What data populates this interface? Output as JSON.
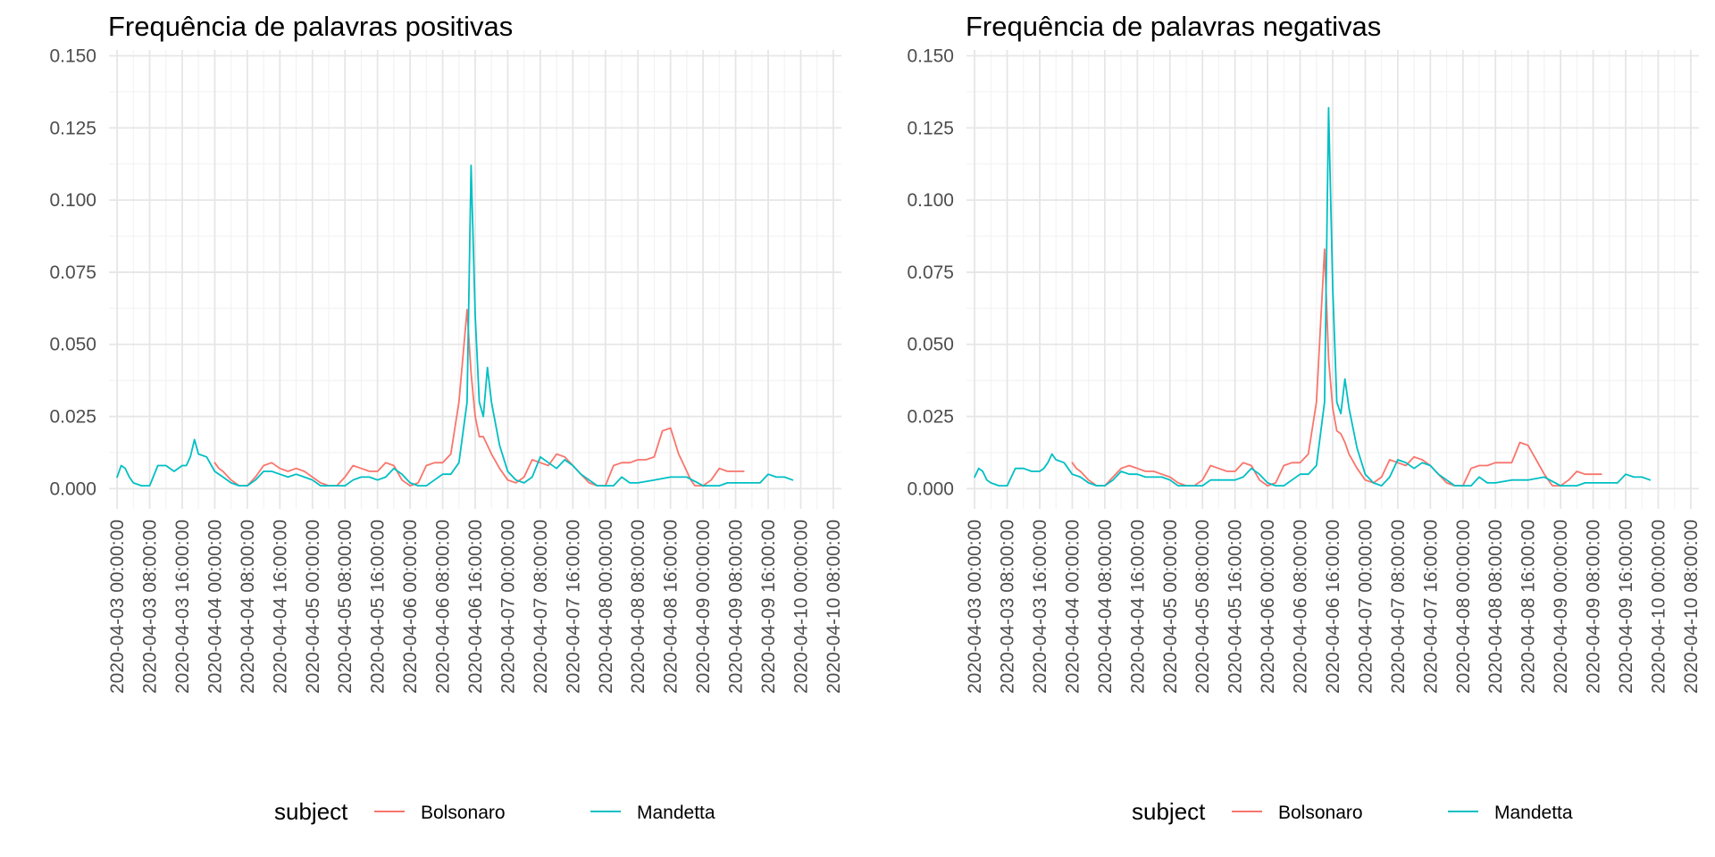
{
  "chart_data": [
    {
      "type": "line",
      "title": "Frequência de palavras positivas",
      "xlabel": "",
      "ylabel": "",
      "ylim": [
        -0.007,
        0.152
      ],
      "y_ticks": [
        0.0,
        0.025,
        0.05,
        0.075,
        0.1,
        0.125,
        0.15
      ],
      "y_tick_labels": [
        "0.000",
        "0.025",
        "0.050",
        "0.075",
        "0.100",
        "0.125",
        "0.150"
      ],
      "x_range": [
        "2020-04-02 22:00",
        "2020-04-10 10:00"
      ],
      "x_ticks": [
        "2020-04-03 00:00:00",
        "2020-04-03 08:00:00",
        "2020-04-03 16:00:00",
        "2020-04-04 00:00:00",
        "2020-04-04 08:00:00",
        "2020-04-04 16:00:00",
        "2020-04-05 00:00:00",
        "2020-04-05 08:00:00",
        "2020-04-05 16:00:00",
        "2020-04-06 00:00:00",
        "2020-04-06 08:00:00",
        "2020-04-06 16:00:00",
        "2020-04-07 00:00:00",
        "2020-04-07 08:00:00",
        "2020-04-07 16:00:00",
        "2020-04-08 00:00:00",
        "2020-04-08 08:00:00",
        "2020-04-08 16:00:00",
        "2020-04-09 00:00:00",
        "2020-04-09 08:00:00",
        "2020-04-09 16:00:00",
        "2020-04-10 00:00:00",
        "2020-04-10 08:00:00"
      ],
      "grid": true,
      "legend": {
        "title": "subject",
        "position": "bottom",
        "entries": [
          "Bolsonaro",
          "Mandetta"
        ]
      },
      "series": [
        {
          "name": "Bolsonaro",
          "color": "#F8766D",
          "x": [
            "2020-04-04 00:00",
            "2020-04-04 01:00",
            "2020-04-04 02:00",
            "2020-04-04 04:00",
            "2020-04-04 06:00",
            "2020-04-04 08:00",
            "2020-04-04 10:00",
            "2020-04-04 12:00",
            "2020-04-04 14:00",
            "2020-04-04 16:00",
            "2020-04-04 18:00",
            "2020-04-04 20:00",
            "2020-04-04 22:00",
            "2020-04-05 00:00",
            "2020-04-05 02:00",
            "2020-04-05 04:00",
            "2020-04-05 06:00",
            "2020-04-05 08:00",
            "2020-04-05 10:00",
            "2020-04-05 12:00",
            "2020-04-05 14:00",
            "2020-04-05 16:00",
            "2020-04-05 18:00",
            "2020-04-05 20:00",
            "2020-04-05 22:00",
            "2020-04-06 00:00",
            "2020-04-06 02:00",
            "2020-04-06 04:00",
            "2020-04-06 06:00",
            "2020-04-06 08:00",
            "2020-04-06 10:00",
            "2020-04-06 12:00",
            "2020-04-06 14:00",
            "2020-04-06 15:00",
            "2020-04-06 16:00",
            "2020-04-06 17:00",
            "2020-04-06 18:00",
            "2020-04-06 19:00",
            "2020-04-06 20:00",
            "2020-04-06 22:00",
            "2020-04-07 00:00",
            "2020-04-07 02:00",
            "2020-04-07 04:00",
            "2020-04-07 06:00",
            "2020-04-07 08:00",
            "2020-04-07 10:00",
            "2020-04-07 12:00",
            "2020-04-07 14:00",
            "2020-04-07 16:00",
            "2020-04-07 18:00",
            "2020-04-07 20:00",
            "2020-04-07 22:00",
            "2020-04-08 00:00",
            "2020-04-08 02:00",
            "2020-04-08 04:00",
            "2020-04-08 06:00",
            "2020-04-08 08:00",
            "2020-04-08 10:00",
            "2020-04-08 12:00",
            "2020-04-08 14:00",
            "2020-04-08 16:00",
            "2020-04-08 18:00",
            "2020-04-08 20:00",
            "2020-04-08 21:00",
            "2020-04-08 22:00",
            "2020-04-09 00:00",
            "2020-04-09 02:00",
            "2020-04-09 04:00",
            "2020-04-09 06:00",
            "2020-04-09 08:00",
            "2020-04-09 10:00"
          ],
          "values": [
            0.009,
            0.007,
            0.006,
            0.003,
            0.001,
            0.001,
            0.004,
            0.008,
            0.009,
            0.007,
            0.006,
            0.007,
            0.006,
            0.004,
            0.002,
            0.001,
            0.001,
            0.004,
            0.008,
            0.007,
            0.006,
            0.006,
            0.009,
            0.008,
            0.003,
            0.001,
            0.002,
            0.008,
            0.009,
            0.009,
            0.012,
            0.03,
            0.062,
            0.04,
            0.025,
            0.018,
            0.018,
            0.015,
            0.012,
            0.007,
            0.003,
            0.002,
            0.004,
            0.01,
            0.009,
            0.008,
            0.012,
            0.011,
            0.008,
            0.005,
            0.002,
            0.001,
            0.001,
            0.008,
            0.009,
            0.009,
            0.01,
            0.01,
            0.011,
            0.02,
            0.021,
            0.012,
            0.006,
            0.003,
            0.001,
            0.001,
            0.003,
            0.007,
            0.006,
            0.006,
            0.006
          ]
        },
        {
          "name": "Mandetta",
          "color": "#00BFC4",
          "x": [
            "2020-04-03 00:00",
            "2020-04-03 01:00",
            "2020-04-03 02:00",
            "2020-04-03 03:00",
            "2020-04-03 04:00",
            "2020-04-03 06:00",
            "2020-04-03 08:00",
            "2020-04-03 10:00",
            "2020-04-03 12:00",
            "2020-04-03 14:00",
            "2020-04-03 16:00",
            "2020-04-03 17:00",
            "2020-04-03 18:00",
            "2020-04-03 19:00",
            "2020-04-03 20:00",
            "2020-04-03 22:00",
            "2020-04-04 00:00",
            "2020-04-04 02:00",
            "2020-04-04 04:00",
            "2020-04-04 06:00",
            "2020-04-04 08:00",
            "2020-04-04 10:00",
            "2020-04-04 12:00",
            "2020-04-04 14:00",
            "2020-04-04 16:00",
            "2020-04-04 18:00",
            "2020-04-04 20:00",
            "2020-04-04 22:00",
            "2020-04-05 00:00",
            "2020-04-05 02:00",
            "2020-04-05 04:00",
            "2020-04-05 06:00",
            "2020-04-05 08:00",
            "2020-04-05 10:00",
            "2020-04-05 12:00",
            "2020-04-05 14:00",
            "2020-04-05 16:00",
            "2020-04-05 18:00",
            "2020-04-05 20:00",
            "2020-04-05 22:00",
            "2020-04-06 00:00",
            "2020-04-06 02:00",
            "2020-04-06 04:00",
            "2020-04-06 06:00",
            "2020-04-06 08:00",
            "2020-04-06 10:00",
            "2020-04-06 12:00",
            "2020-04-06 14:00",
            "2020-04-06 15:00",
            "2020-04-06 16:00",
            "2020-04-06 17:00",
            "2020-04-06 18:00",
            "2020-04-06 19:00",
            "2020-04-06 20:00",
            "2020-04-06 22:00",
            "2020-04-07 00:00",
            "2020-04-07 02:00",
            "2020-04-07 04:00",
            "2020-04-07 06:00",
            "2020-04-07 08:00",
            "2020-04-07 10:00",
            "2020-04-07 12:00",
            "2020-04-07 14:00",
            "2020-04-07 16:00",
            "2020-04-07 18:00",
            "2020-04-07 20:00",
            "2020-04-07 22:00",
            "2020-04-08 00:00",
            "2020-04-08 02:00",
            "2020-04-08 04:00",
            "2020-04-08 06:00",
            "2020-04-08 08:00",
            "2020-04-08 12:00",
            "2020-04-08 16:00",
            "2020-04-08 20:00",
            "2020-04-09 00:00",
            "2020-04-09 02:00",
            "2020-04-09 04:00",
            "2020-04-09 06:00",
            "2020-04-09 08:00",
            "2020-04-09 10:00",
            "2020-04-09 12:00",
            "2020-04-09 14:00",
            "2020-04-09 16:00",
            "2020-04-09 18:00",
            "2020-04-09 20:00",
            "2020-04-09 22:00"
          ],
          "values": [
            0.004,
            0.008,
            0.007,
            0.004,
            0.002,
            0.001,
            0.001,
            0.008,
            0.008,
            0.006,
            0.008,
            0.008,
            0.011,
            0.017,
            0.012,
            0.011,
            0.006,
            0.004,
            0.002,
            0.001,
            0.001,
            0.003,
            0.006,
            0.006,
            0.005,
            0.004,
            0.005,
            0.004,
            0.003,
            0.001,
            0.001,
            0.001,
            0.001,
            0.003,
            0.004,
            0.004,
            0.003,
            0.004,
            0.007,
            0.005,
            0.002,
            0.001,
            0.001,
            0.003,
            0.005,
            0.005,
            0.009,
            0.03,
            0.112,
            0.06,
            0.03,
            0.025,
            0.042,
            0.03,
            0.015,
            0.006,
            0.003,
            0.002,
            0.004,
            0.011,
            0.009,
            0.007,
            0.01,
            0.008,
            0.005,
            0.003,
            0.001,
            0.001,
            0.001,
            0.004,
            0.002,
            0.002,
            0.003,
            0.004,
            0.004,
            0.001,
            0.001,
            0.001,
            0.002,
            0.002,
            0.002,
            0.002,
            0.002,
            0.005,
            0.004,
            0.004,
            0.003
          ]
        }
      ]
    },
    {
      "type": "line",
      "title": "Frequência de palavras negativas",
      "xlabel": "",
      "ylabel": "",
      "ylim": [
        -0.007,
        0.152
      ],
      "y_ticks": [
        0.0,
        0.025,
        0.05,
        0.075,
        0.1,
        0.125,
        0.15
      ],
      "y_tick_labels": [
        "0.000",
        "0.025",
        "0.050",
        "0.075",
        "0.100",
        "0.125",
        "0.150"
      ],
      "x_range": [
        "2020-04-02 22:00",
        "2020-04-10 10:00"
      ],
      "x_ticks": [
        "2020-04-03 00:00:00",
        "2020-04-03 08:00:00",
        "2020-04-03 16:00:00",
        "2020-04-04 00:00:00",
        "2020-04-04 08:00:00",
        "2020-04-04 16:00:00",
        "2020-04-05 00:00:00",
        "2020-04-05 08:00:00",
        "2020-04-05 16:00:00",
        "2020-04-06 00:00:00",
        "2020-04-06 08:00:00",
        "2020-04-06 16:00:00",
        "2020-04-07 00:00:00",
        "2020-04-07 08:00:00",
        "2020-04-07 16:00:00",
        "2020-04-08 00:00:00",
        "2020-04-08 08:00:00",
        "2020-04-08 16:00:00",
        "2020-04-09 00:00:00",
        "2020-04-09 08:00:00",
        "2020-04-09 16:00:00",
        "2020-04-10 00:00:00",
        "2020-04-10 08:00:00"
      ],
      "grid": true,
      "legend": {
        "title": "subject",
        "position": "bottom",
        "entries": [
          "Bolsonaro",
          "Mandetta"
        ]
      },
      "series": [
        {
          "name": "Bolsonaro",
          "color": "#F8766D",
          "x": [
            "2020-04-04 00:00",
            "2020-04-04 01:00",
            "2020-04-04 02:00",
            "2020-04-04 04:00",
            "2020-04-04 06:00",
            "2020-04-04 08:00",
            "2020-04-04 10:00",
            "2020-04-04 12:00",
            "2020-04-04 14:00",
            "2020-04-04 16:00",
            "2020-04-04 18:00",
            "2020-04-04 20:00",
            "2020-04-04 22:00",
            "2020-04-05 00:00",
            "2020-04-05 02:00",
            "2020-04-05 04:00",
            "2020-04-05 06:00",
            "2020-04-05 08:00",
            "2020-04-05 10:00",
            "2020-04-05 12:00",
            "2020-04-05 14:00",
            "2020-04-05 16:00",
            "2020-04-05 18:00",
            "2020-04-05 20:00",
            "2020-04-05 22:00",
            "2020-04-06 00:00",
            "2020-04-06 02:00",
            "2020-04-06 04:00",
            "2020-04-06 06:00",
            "2020-04-06 08:00",
            "2020-04-06 10:00",
            "2020-04-06 12:00",
            "2020-04-06 14:00",
            "2020-04-06 15:00",
            "2020-04-06 16:00",
            "2020-04-06 17:00",
            "2020-04-06 18:00",
            "2020-04-06 19:00",
            "2020-04-06 20:00",
            "2020-04-06 22:00",
            "2020-04-07 00:00",
            "2020-04-07 02:00",
            "2020-04-07 04:00",
            "2020-04-07 06:00",
            "2020-04-07 08:00",
            "2020-04-07 10:00",
            "2020-04-07 12:00",
            "2020-04-07 14:00",
            "2020-04-07 16:00",
            "2020-04-07 18:00",
            "2020-04-07 20:00",
            "2020-04-07 22:00",
            "2020-04-08 00:00",
            "2020-04-08 02:00",
            "2020-04-08 04:00",
            "2020-04-08 06:00",
            "2020-04-08 08:00",
            "2020-04-08 10:00",
            "2020-04-08 12:00",
            "2020-04-08 14:00",
            "2020-04-08 16:00",
            "2020-04-08 18:00",
            "2020-04-08 20:00",
            "2020-04-08 21:00",
            "2020-04-08 22:00",
            "2020-04-09 00:00",
            "2020-04-09 02:00",
            "2020-04-09 04:00",
            "2020-04-09 06:00",
            "2020-04-09 08:00",
            "2020-04-09 10:00"
          ],
          "values": [
            0.009,
            0.007,
            0.006,
            0.003,
            0.001,
            0.001,
            0.004,
            0.007,
            0.008,
            0.007,
            0.006,
            0.006,
            0.005,
            0.004,
            0.002,
            0.001,
            0.001,
            0.003,
            0.008,
            0.007,
            0.006,
            0.006,
            0.009,
            0.008,
            0.003,
            0.001,
            0.002,
            0.008,
            0.009,
            0.009,
            0.012,
            0.03,
            0.083,
            0.045,
            0.028,
            0.02,
            0.019,
            0.016,
            0.012,
            0.007,
            0.003,
            0.002,
            0.004,
            0.01,
            0.009,
            0.008,
            0.011,
            0.01,
            0.008,
            0.005,
            0.002,
            0.001,
            0.001,
            0.007,
            0.008,
            0.008,
            0.009,
            0.009,
            0.009,
            0.016,
            0.015,
            0.01,
            0.005,
            0.003,
            0.001,
            0.001,
            0.003,
            0.006,
            0.005,
            0.005,
            0.005
          ]
        },
        {
          "name": "Mandetta",
          "color": "#00BFC4",
          "x": [
            "2020-04-03 00:00",
            "2020-04-03 01:00",
            "2020-04-03 02:00",
            "2020-04-03 03:00",
            "2020-04-03 04:00",
            "2020-04-03 06:00",
            "2020-04-03 08:00",
            "2020-04-03 10:00",
            "2020-04-03 12:00",
            "2020-04-03 14:00",
            "2020-04-03 16:00",
            "2020-04-03 17:00",
            "2020-04-03 18:00",
            "2020-04-03 19:00",
            "2020-04-03 20:00",
            "2020-04-03 22:00",
            "2020-04-04 00:00",
            "2020-04-04 02:00",
            "2020-04-04 04:00",
            "2020-04-04 06:00",
            "2020-04-04 08:00",
            "2020-04-04 10:00",
            "2020-04-04 12:00",
            "2020-04-04 14:00",
            "2020-04-04 16:00",
            "2020-04-04 18:00",
            "2020-04-04 20:00",
            "2020-04-04 22:00",
            "2020-04-05 00:00",
            "2020-04-05 02:00",
            "2020-04-05 04:00",
            "2020-04-05 06:00",
            "2020-04-05 08:00",
            "2020-04-05 10:00",
            "2020-04-05 12:00",
            "2020-04-05 14:00",
            "2020-04-05 16:00",
            "2020-04-05 18:00",
            "2020-04-05 20:00",
            "2020-04-05 22:00",
            "2020-04-06 00:00",
            "2020-04-06 02:00",
            "2020-04-06 04:00",
            "2020-04-06 06:00",
            "2020-04-06 08:00",
            "2020-04-06 10:00",
            "2020-04-06 12:00",
            "2020-04-06 14:00",
            "2020-04-06 15:00",
            "2020-04-06 16:00",
            "2020-04-06 17:00",
            "2020-04-06 18:00",
            "2020-04-06 19:00",
            "2020-04-06 20:00",
            "2020-04-06 22:00",
            "2020-04-07 00:00",
            "2020-04-07 02:00",
            "2020-04-07 04:00",
            "2020-04-07 06:00",
            "2020-04-07 08:00",
            "2020-04-07 10:00",
            "2020-04-07 12:00",
            "2020-04-07 14:00",
            "2020-04-07 16:00",
            "2020-04-07 18:00",
            "2020-04-07 20:00",
            "2020-04-07 22:00",
            "2020-04-08 00:00",
            "2020-04-08 02:00",
            "2020-04-08 04:00",
            "2020-04-08 06:00",
            "2020-04-08 08:00",
            "2020-04-08 12:00",
            "2020-04-08 16:00",
            "2020-04-08 20:00",
            "2020-04-09 00:00",
            "2020-04-09 02:00",
            "2020-04-09 04:00",
            "2020-04-09 06:00",
            "2020-04-09 08:00",
            "2020-04-09 10:00",
            "2020-04-09 12:00",
            "2020-04-09 14:00",
            "2020-04-09 16:00",
            "2020-04-09 18:00",
            "2020-04-09 20:00",
            "2020-04-09 22:00"
          ],
          "values": [
            0.004,
            0.007,
            0.006,
            0.003,
            0.002,
            0.001,
            0.001,
            0.007,
            0.007,
            0.006,
            0.006,
            0.007,
            0.009,
            0.012,
            0.01,
            0.009,
            0.005,
            0.004,
            0.002,
            0.001,
            0.001,
            0.003,
            0.006,
            0.005,
            0.005,
            0.004,
            0.004,
            0.004,
            0.003,
            0.001,
            0.001,
            0.001,
            0.001,
            0.003,
            0.003,
            0.003,
            0.003,
            0.004,
            0.007,
            0.005,
            0.002,
            0.001,
            0.001,
            0.003,
            0.005,
            0.005,
            0.008,
            0.03,
            0.132,
            0.07,
            0.03,
            0.026,
            0.038,
            0.028,
            0.014,
            0.005,
            0.002,
            0.001,
            0.004,
            0.01,
            0.009,
            0.007,
            0.009,
            0.008,
            0.005,
            0.003,
            0.001,
            0.001,
            0.001,
            0.004,
            0.002,
            0.002,
            0.003,
            0.003,
            0.004,
            0.001,
            0.001,
            0.001,
            0.002,
            0.002,
            0.002,
            0.002,
            0.002,
            0.005,
            0.004,
            0.004,
            0.003
          ]
        }
      ]
    }
  ]
}
